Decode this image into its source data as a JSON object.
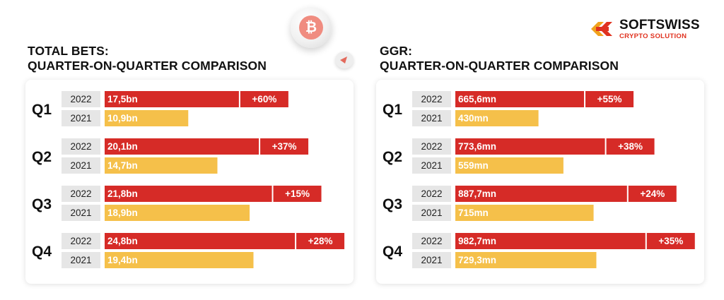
{
  "brand": {
    "name": "SOFTSWISS",
    "subtitle": "CRYPTO SOLUTION",
    "colors": {
      "red": "#d62b27",
      "yellow": "#f5c04a",
      "year_bg": "#e6e6e6",
      "accent": "#e0321f"
    }
  },
  "decor": {
    "coin_icon": "bitcoin-coin-icon",
    "coin_symbol": "₿",
    "chip_icon": "poker-chip-icon"
  },
  "chart_data": [
    {
      "type": "bar",
      "orientation": "horizontal",
      "title": [
        "TOTAL BETS:",
        "QUARTER-ON-QUARTER COMPARISON"
      ],
      "categories": [
        "Q1",
        "Q2",
        "Q3",
        "Q4"
      ],
      "series": [
        {
          "name": "2022",
          "color": "#d62b27",
          "values": [
            17.5,
            20.1,
            21.8,
            24.8
          ],
          "labels": [
            "17,5bn",
            "20,1bn",
            "21,8bn",
            "24,8bn"
          ]
        },
        {
          "name": "2021",
          "color": "#f5c04a",
          "values": [
            10.9,
            14.7,
            18.9,
            19.4
          ],
          "labels": [
            "10,9bn",
            "14,7bn",
            "18,9bn",
            "19,4bn"
          ]
        }
      ],
      "growth_labels": [
        "+60%",
        "+37%",
        "+15%",
        "+28%"
      ]
    },
    {
      "type": "bar",
      "orientation": "horizontal",
      "title": [
        "GGR:",
        "QUARTER-ON-QUARTER COMPARISON"
      ],
      "categories": [
        "Q1",
        "Q2",
        "Q3",
        "Q4"
      ],
      "series": [
        {
          "name": "2022",
          "color": "#d62b27",
          "values": [
            665.6,
            773.6,
            887.7,
            982.7
          ],
          "labels": [
            "665,6mn",
            "773,6mn",
            "887,7mn",
            "982,7mn"
          ]
        },
        {
          "name": "2021",
          "color": "#f5c04a",
          "values": [
            430,
            559,
            715,
            729.3
          ],
          "labels": [
            "430mn",
            "559mn",
            "715mn",
            "729,3mn"
          ]
        }
      ],
      "growth_labels": [
        "+55%",
        "+38%",
        "+24%",
        "+35%"
      ]
    }
  ]
}
